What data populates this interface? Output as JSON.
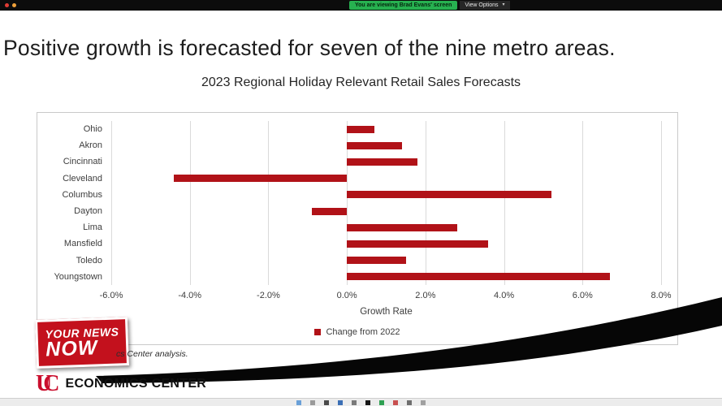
{
  "zoom_bar": {
    "viewing_text": "You are viewing Brad Evans' screen",
    "view_options_label": "View Options"
  },
  "icons": {
    "chevron_down": "▾"
  },
  "slide": {
    "headline": "Positive growth is forecasted for seven of the nine metro areas."
  },
  "chart_data": {
    "type": "bar",
    "orientation": "horizontal",
    "title": "2023 Regional Holiday Relevant Retail Sales Forecasts",
    "categories": [
      "Ohio",
      "Akron",
      "Cincinnati",
      "Cleveland",
      "Columbus",
      "Dayton",
      "Lima",
      "Mansfield",
      "Toledo",
      "Youngstown"
    ],
    "values": [
      0.7,
      1.4,
      1.8,
      -4.4,
      5.2,
      -0.9,
      2.8,
      3.6,
      1.5,
      6.7
    ],
    "unit": "%",
    "xlabel": "Growth Rate",
    "ylabel": "",
    "xlim": [
      -6,
      8
    ],
    "xticks": [
      -6,
      -4,
      -2,
      0,
      2,
      4,
      6,
      8
    ],
    "xtick_labels": [
      "-6.0%",
      "-4.0%",
      "-2.0%",
      "0.0%",
      "2.0%",
      "4.0%",
      "6.0%",
      "8.0%"
    ],
    "grid": true,
    "legend_position": "bottom",
    "bar_color": "#b11218",
    "legend": [
      {
        "label": "Change from 2022",
        "color": "#b11218"
      }
    ]
  },
  "footer": {
    "source_note": "cs Center analysis.",
    "news_logo": {
      "line1": "YOUR NEWS",
      "line2": "NOW"
    },
    "uc_logo": {
      "u": "U",
      "c": "C"
    },
    "org_name": "ECONOMICS CENTER"
  },
  "taskbar_icons": [
    "#6aa0d8",
    "#9a9a9a",
    "#4a4a4a",
    "#3b6fb5",
    "#7a7a7a",
    "#161616",
    "#2fa052",
    "#c85050",
    "#6f6f6f",
    "#a0a0a0"
  ]
}
